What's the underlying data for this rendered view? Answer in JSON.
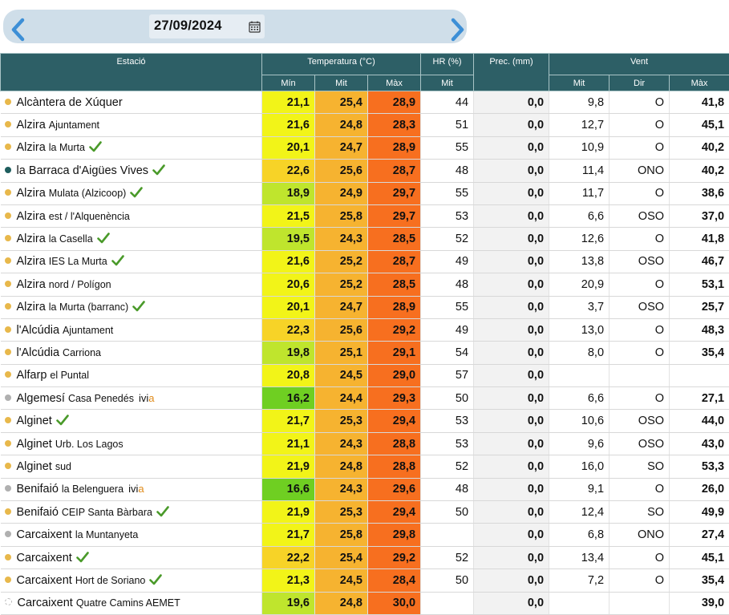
{
  "date": {
    "value": "27/09/2024"
  },
  "icons": {
    "prev": "chevron-left-icon",
    "next": "chevron-right-icon",
    "calendar": "calendar-icon",
    "check": "checkmark-icon"
  },
  "colors": {
    "header_bg": "#2d5f66",
    "nav_bar": "#cfdee9",
    "ivia_accent": "#e08b1a"
  },
  "headers": {
    "estacio": "Estació",
    "temperatura": "Temperatura (°C)",
    "hr": "HR (%)",
    "prec": "Prec. (mm)",
    "vent": "Vent",
    "min": "Mín",
    "mit": "Mit",
    "max": "Màx",
    "hr_mit": "Mit",
    "vent_mit": "Mit",
    "dir": "Dir",
    "vent_max": "Màx"
  },
  "rows": [
    {
      "name": "Alcàntera de Xúquer",
      "sub": "",
      "check": false,
      "ivia": false,
      "dot": "#e8b84b",
      "dot_outline": false,
      "tmin": "21,1",
      "tmin_bg": "#f2f418",
      "tmit": "25,4",
      "tmax": "28,9",
      "hr": "44",
      "prec": "0,0",
      "vmit": "9,8",
      "dir": "O",
      "vmax": "41,8"
    },
    {
      "name": "Alzira",
      "sub": "Ajuntament",
      "check": false,
      "ivia": false,
      "dot": "#e8b84b",
      "dot_outline": false,
      "tmin": "21,6",
      "tmin_bg": "#f2f418",
      "tmit": "24,8",
      "tmax": "28,3",
      "hr": "51",
      "prec": "0,0",
      "vmit": "12,7",
      "dir": "O",
      "vmax": "45,1"
    },
    {
      "name": "Alzira",
      "sub": "la Murta",
      "check": true,
      "ivia": false,
      "dot": "#e8b84b",
      "dot_outline": false,
      "tmin": "20,1",
      "tmin_bg": "#f2f418",
      "tmit": "24,7",
      "tmax": "28,9",
      "hr": "55",
      "prec": "0,0",
      "vmit": "10,9",
      "dir": "O",
      "vmax": "40,2"
    },
    {
      "name": "la Barraca d'Aigües Vives",
      "sub": "",
      "check": true,
      "ivia": false,
      "dot": "#1e5d5d",
      "dot_outline": false,
      "tmin": "22,6",
      "tmin_bg": "#f7d327",
      "tmit": "25,6",
      "tmax": "28,7",
      "hr": "48",
      "prec": "0,0",
      "vmit": "11,4",
      "dir": "ONO",
      "vmax": "40,2"
    },
    {
      "name": "Alzira",
      "sub": "Mulata (Alzicoop)",
      "check": true,
      "ivia": false,
      "dot": "#e8b84b",
      "dot_outline": false,
      "tmin": "18,9",
      "tmin_bg": "#bfe52d",
      "tmit": "24,9",
      "tmax": "29,7",
      "hr": "55",
      "prec": "0,0",
      "vmit": "11,7",
      "dir": "O",
      "vmax": "38,6"
    },
    {
      "name": "Alzira",
      "sub": "est / l'Alquenència",
      "check": false,
      "ivia": false,
      "dot": "#e8b84b",
      "dot_outline": false,
      "tmin": "21,5",
      "tmin_bg": "#f2f418",
      "tmit": "25,8",
      "tmax": "29,7",
      "hr": "53",
      "prec": "0,0",
      "vmit": "6,6",
      "dir": "OSO",
      "vmax": "37,0"
    },
    {
      "name": "Alzira",
      "sub": "la Casella",
      "check": true,
      "ivia": false,
      "dot": "#e8b84b",
      "dot_outline": false,
      "tmin": "19,5",
      "tmin_bg": "#bfe52d",
      "tmit": "24,3",
      "tmax": "28,5",
      "hr": "52",
      "prec": "0,0",
      "vmit": "12,6",
      "dir": "O",
      "vmax": "41,8"
    },
    {
      "name": "Alzira",
      "sub": "IES La Murta",
      "check": true,
      "ivia": false,
      "dot": "#e8b84b",
      "dot_outline": false,
      "tmin": "21,6",
      "tmin_bg": "#f2f418",
      "tmit": "25,2",
      "tmax": "28,7",
      "hr": "49",
      "prec": "0,0",
      "vmit": "13,8",
      "dir": "OSO",
      "vmax": "46,7"
    },
    {
      "name": "Alzira",
      "sub": "nord / Polígon",
      "check": false,
      "ivia": false,
      "dot": "#e8b84b",
      "dot_outline": false,
      "tmin": "20,6",
      "tmin_bg": "#f2f418",
      "tmit": "25,2",
      "tmax": "28,5",
      "hr": "48",
      "prec": "0,0",
      "vmit": "20,9",
      "dir": "O",
      "vmax": "53,1"
    },
    {
      "name": "Alzira",
      "sub": "la Murta (barranc)",
      "check": true,
      "ivia": false,
      "dot": "#e8b84b",
      "dot_outline": false,
      "tmin": "20,1",
      "tmin_bg": "#f2f418",
      "tmit": "24,7",
      "tmax": "28,9",
      "hr": "55",
      "prec": "0,0",
      "vmit": "3,7",
      "dir": "OSO",
      "vmax": "25,7"
    },
    {
      "name": "l'Alcúdia",
      "sub": "Ajuntament",
      "check": false,
      "ivia": false,
      "dot": "#e8b84b",
      "dot_outline": false,
      "tmin": "22,3",
      "tmin_bg": "#f7d327",
      "tmit": "25,6",
      "tmax": "29,2",
      "hr": "49",
      "prec": "0,0",
      "vmit": "13,0",
      "dir": "O",
      "vmax": "48,3"
    },
    {
      "name": "l'Alcúdia",
      "sub": "Carriona",
      "check": false,
      "ivia": false,
      "dot": "#e8b84b",
      "dot_outline": false,
      "tmin": "19,8",
      "tmin_bg": "#bfe52d",
      "tmit": "25,1",
      "tmax": "29,1",
      "hr": "54",
      "prec": "0,0",
      "vmit": "8,0",
      "dir": "O",
      "vmax": "35,4"
    },
    {
      "name": "Alfarp",
      "sub": "el Puntal",
      "check": false,
      "ivia": false,
      "dot": "#e8b84b",
      "dot_outline": false,
      "tmin": "20,8",
      "tmin_bg": "#f2f418",
      "tmit": "24,5",
      "tmax": "29,0",
      "hr": "57",
      "prec": "0,0",
      "vmit": "",
      "dir": "",
      "vmax": ""
    },
    {
      "name": "Algemesí",
      "sub": "Casa Penedés",
      "check": false,
      "ivia": true,
      "dot": "#b0b0b0",
      "dot_outline": false,
      "tmin": "16,2",
      "tmin_bg": "#6fcf22",
      "tmit": "24,4",
      "tmax": "29,3",
      "hr": "50",
      "prec": "0,0",
      "vmit": "6,6",
      "dir": "O",
      "vmax": "27,1"
    },
    {
      "name": "Alginet",
      "sub": "",
      "check": true,
      "ivia": false,
      "dot": "#e8b84b",
      "dot_outline": false,
      "tmin": "21,7",
      "tmin_bg": "#f2f418",
      "tmit": "25,3",
      "tmax": "29,4",
      "hr": "53",
      "prec": "0,0",
      "vmit": "10,6",
      "dir": "OSO",
      "vmax": "44,0"
    },
    {
      "name": "Alginet",
      "sub": "Urb. Los Lagos",
      "check": false,
      "ivia": false,
      "dot": "#e8b84b",
      "dot_outline": false,
      "tmin": "21,1",
      "tmin_bg": "#f2f418",
      "tmit": "24,3",
      "tmax": "28,8",
      "hr": "53",
      "prec": "0,0",
      "vmit": "9,6",
      "dir": "OSO",
      "vmax": "43,0"
    },
    {
      "name": "Alginet",
      "sub": "sud",
      "check": false,
      "ivia": false,
      "dot": "#e8b84b",
      "dot_outline": false,
      "tmin": "21,9",
      "tmin_bg": "#f2f418",
      "tmit": "24,8",
      "tmax": "28,8",
      "hr": "52",
      "prec": "0,0",
      "vmit": "16,0",
      "dir": "SO",
      "vmax": "53,3"
    },
    {
      "name": "Benifaió",
      "sub": "la Belenguera",
      "check": false,
      "ivia": true,
      "dot": "#b0b0b0",
      "dot_outline": false,
      "tmin": "16,6",
      "tmin_bg": "#6fcf22",
      "tmit": "24,3",
      "tmax": "29,6",
      "hr": "48",
      "prec": "0,0",
      "vmit": "9,1",
      "dir": "O",
      "vmax": "26,0"
    },
    {
      "name": "Benifaió",
      "sub": "CEIP Santa Bàrbara",
      "check": true,
      "ivia": false,
      "dot": "#e8b84b",
      "dot_outline": false,
      "tmin": "21,9",
      "tmin_bg": "#f2f418",
      "tmit": "25,3",
      "tmax": "29,4",
      "hr": "50",
      "prec": "0,0",
      "vmit": "12,4",
      "dir": "SO",
      "vmax": "49,9"
    },
    {
      "name": "Carcaixent",
      "sub": "la Muntanyeta",
      "check": false,
      "ivia": false,
      "dot": "#b0b0b0",
      "dot_outline": false,
      "tmin": "21,7",
      "tmin_bg": "#f2f418",
      "tmit": "25,8",
      "tmax": "29,8",
      "hr": "",
      "prec": "0,0",
      "vmit": "6,8",
      "dir": "ONO",
      "vmax": "27,4"
    },
    {
      "name": "Carcaixent",
      "sub": "",
      "check": true,
      "ivia": false,
      "dot": "#e8b84b",
      "dot_outline": false,
      "tmin": "22,2",
      "tmin_bg": "#f7d327",
      "tmit": "25,4",
      "tmax": "29,2",
      "hr": "52",
      "prec": "0,0",
      "vmit": "13,4",
      "dir": "O",
      "vmax": "45,1"
    },
    {
      "name": "Carcaixent",
      "sub": "Hort de Soriano",
      "check": true,
      "ivia": false,
      "dot": "#e8b84b",
      "dot_outline": false,
      "tmin": "21,3",
      "tmin_bg": "#f2f418",
      "tmit": "24,5",
      "tmax": "28,4",
      "hr": "50",
      "prec": "0,0",
      "vmit": "7,2",
      "dir": "O",
      "vmax": "35,4"
    },
    {
      "name": "Carcaixent",
      "sub": "Quatre Camins AEMET",
      "check": false,
      "ivia": false,
      "dot": "#ffffff",
      "dot_outline": true,
      "tmin": "19,6",
      "tmin_bg": "#bfe52d",
      "tmit": "24,8",
      "tmax": "30,0",
      "hr": "",
      "prec": "0,0",
      "vmit": "",
      "dir": "",
      "vmax": "39,0"
    }
  ],
  "cell_colors": {
    "tmit_bg": "#f6b330",
    "tmax_bg": "#f76f1f"
  },
  "ivia_label": {
    "main": "ivi",
    "accent": "a"
  }
}
